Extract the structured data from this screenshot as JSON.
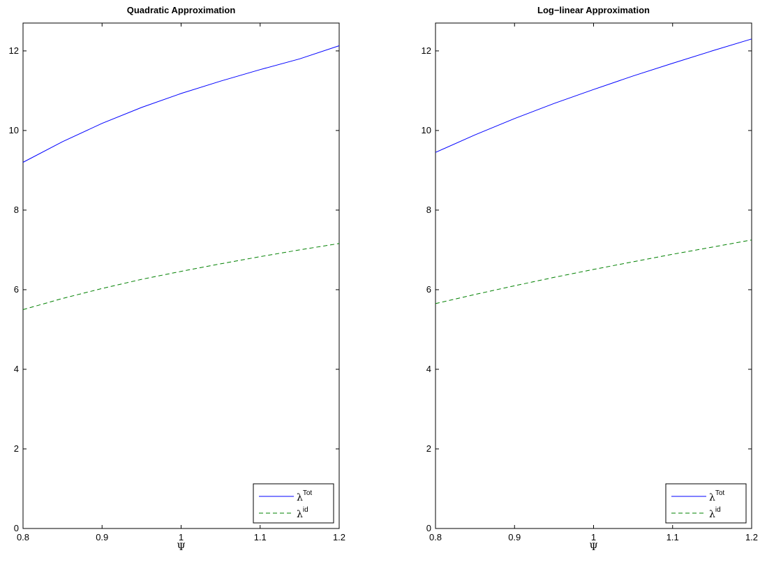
{
  "chart_data": [
    {
      "type": "line",
      "title": "Quadratic Approximation",
      "xlabel": "Ψ",
      "ylabel": "",
      "xlim": [
        0.8,
        1.2
      ],
      "ylim": [
        0,
        12.7
      ],
      "xticks": [
        0.8,
        0.9,
        1.0,
        1.1,
        1.2
      ],
      "xtick_labels": [
        "0.8",
        "0.9",
        "1",
        "1.1",
        "1.2"
      ],
      "yticks": [
        0,
        2,
        4,
        6,
        8,
        10,
        12
      ],
      "ytick_labels": [
        "0",
        "2",
        "4",
        "6",
        "8",
        "10",
        "12"
      ],
      "grid": false,
      "legend_position": "bottom-right",
      "x": [
        0.8,
        0.85,
        0.9,
        0.95,
        1.0,
        1.05,
        1.1,
        1.15,
        1.2
      ],
      "series": [
        {
          "name": "λ",
          "name_sup": "Tot",
          "style": "solid",
          "color": "#0000ff",
          "values": [
            9.2,
            9.72,
            10.18,
            10.58,
            10.93,
            11.24,
            11.53,
            11.8,
            12.13
          ]
        },
        {
          "name": "λ",
          "name_sup": "id",
          "style": "dashed",
          "color": "#008000",
          "values": [
            5.5,
            5.78,
            6.03,
            6.26,
            6.46,
            6.65,
            6.83,
            7.0,
            7.16
          ]
        }
      ]
    },
    {
      "type": "line",
      "title": "Log−linear Approximation",
      "xlabel": "Ψ",
      "ylabel": "",
      "xlim": [
        0.8,
        1.2
      ],
      "ylim": [
        0,
        12.7
      ],
      "xticks": [
        0.8,
        0.9,
        1.0,
        1.1,
        1.2
      ],
      "xtick_labels": [
        "0.8",
        "0.9",
        "1",
        "1.1",
        "1.2"
      ],
      "yticks": [
        0,
        2,
        4,
        6,
        8,
        10,
        12
      ],
      "ytick_labels": [
        "0",
        "2",
        "4",
        "6",
        "8",
        "10",
        "12"
      ],
      "grid": false,
      "legend_position": "bottom-right",
      "x": [
        0.8,
        0.85,
        0.9,
        0.95,
        1.0,
        1.05,
        1.1,
        1.15,
        1.2
      ],
      "series": [
        {
          "name": "λ",
          "name_sup": "Tot",
          "style": "solid",
          "color": "#0000ff",
          "values": [
            9.45,
            9.89,
            10.3,
            10.68,
            11.03,
            11.37,
            11.69,
            12.0,
            12.3
          ]
        },
        {
          "name": "λ",
          "name_sup": "id",
          "style": "dashed",
          "color": "#008000",
          "values": [
            5.65,
            5.88,
            6.1,
            6.31,
            6.51,
            6.7,
            6.89,
            7.07,
            7.25
          ]
        }
      ]
    }
  ]
}
